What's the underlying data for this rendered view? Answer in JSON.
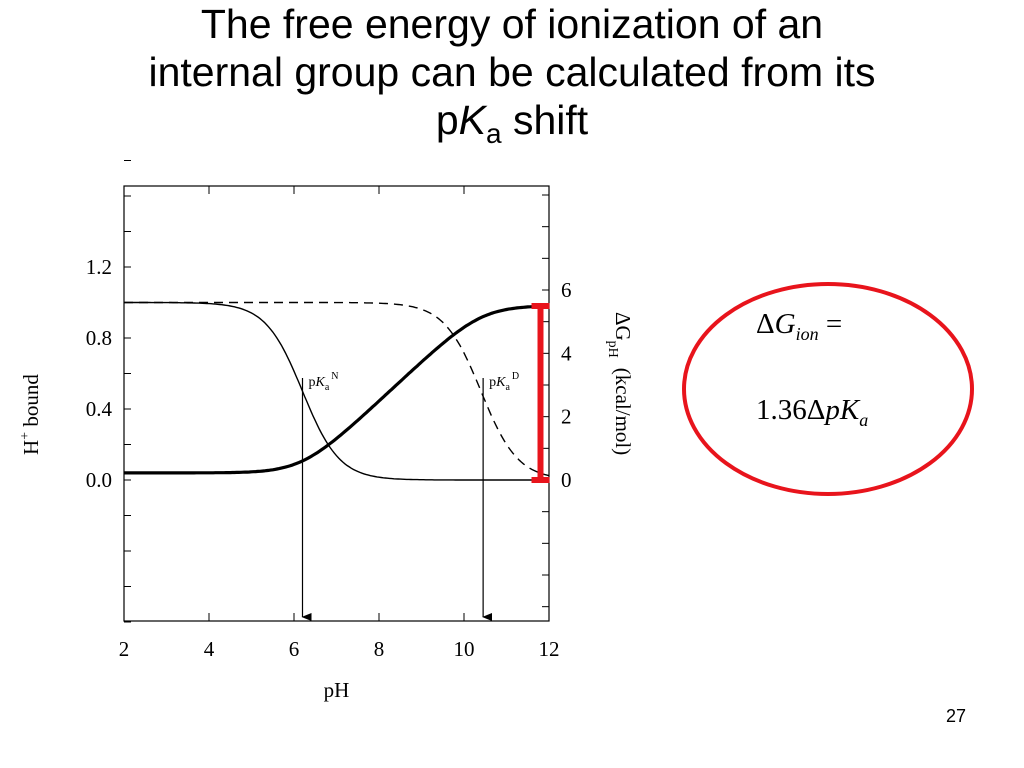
{
  "slide": {
    "title_line1": "The free energy of ionization of an",
    "title_line2": "internal group can be calculated from its",
    "title_p": "p",
    "title_K": "K",
    "title_sub": "a",
    "title_tail": " shift",
    "page_number": "27"
  },
  "formula": {
    "delta": "Δ",
    "G": "G",
    "G_sub": "ion",
    "equals": " =",
    "coefficient": "1.36",
    "delta2": "Δ",
    "pK": "pK",
    "pK_sub": "a",
    "circle_color": "#e8141c"
  },
  "chart_data": {
    "type": "line",
    "x": {
      "label": "pH",
      "range": [
        2,
        12
      ],
      "ticks": [
        2,
        4,
        6,
        8,
        10,
        12
      ]
    },
    "y_left": {
      "label_main": "H",
      "label_sup": "+",
      "label_tail": " bound",
      "range": [
        -0.8,
        1.8
      ],
      "ticks": [
        0.0,
        0.4,
        0.8,
        1.2
      ],
      "tick_labels": [
        "0.0",
        "0.4",
        "0.8",
        "1.2"
      ]
    },
    "y_right": {
      "label_main": "ΔG",
      "label_sub": "pH",
      "label_unit": "(kcal/mol)",
      "ticks": [
        0,
        2,
        4,
        6
      ],
      "tick_labels": [
        "0",
        "2",
        "4",
        "6"
      ]
    },
    "series": [
      {
        "style": "solid-thin",
        "curve": "titration",
        "pKa": 6.2,
        "y_low": 0.0,
        "y_high": 1.0
      },
      {
        "style": "dashed",
        "curve": "titration",
        "pKa": 10.4,
        "y_low": 0.0,
        "y_high": 1.0
      },
      {
        "style": "solid-thick",
        "curve": "free-energy",
        "y_start": 0.04,
        "y_end": 0.98
      }
    ],
    "annotations": [
      {
        "p": "p",
        "K": "K",
        "sub": "a",
        "sup": "N",
        "x": 6.2
      },
      {
        "p": "p",
        "K": "K",
        "sub": "a",
        "sup": "D",
        "x": 10.45
      }
    ],
    "marker": {
      "x": 11.8,
      "y_from": 0.0,
      "y_to": 0.98,
      "color": "#e8141c"
    }
  }
}
